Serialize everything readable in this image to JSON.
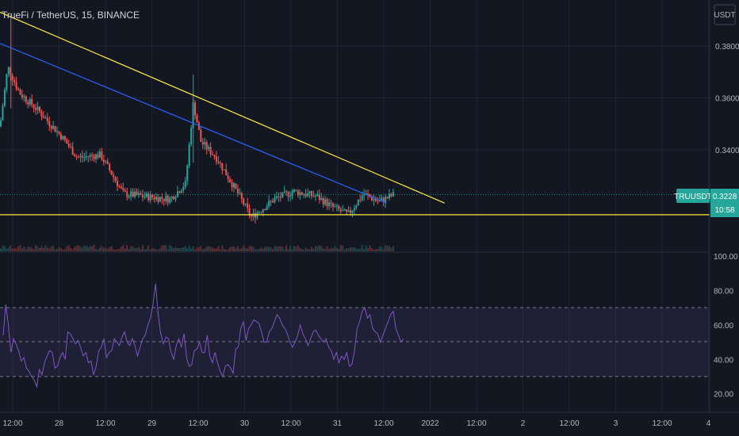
{
  "header": {
    "title": "TrueFi / TetherUS, 15, BINANCE"
  },
  "currency_badge": "USDT",
  "price_tag": {
    "symbol": "TRUUSDT",
    "price": "0.3228",
    "countdown": "10:58",
    "color": "#26a69a"
  },
  "colors": {
    "bg": "#131722",
    "up": "#26a69a",
    "down": "#ef5350",
    "trend_yellow": "#ffeb3b",
    "trend_blue": "#2962ff",
    "rsi": "#7e57c2"
  },
  "chart_data": [
    {
      "type": "candlestick",
      "x_tick_labels": [
        "12:00",
        "28",
        "12:00",
        "29",
        "12:00",
        "30",
        "12:00",
        "31",
        "12:00",
        "2022",
        "12:00",
        "2",
        "12:00",
        "3",
        "12:00",
        "4"
      ],
      "ylim": [
        0.3,
        0.396
      ],
      "y_ticks": [
        0.34,
        0.36,
        0.38
      ],
      "y_tick_labels": [
        "0.3400",
        "0.3600",
        "0.3800"
      ],
      "last_price": 0.3228,
      "approx_close_path": [
        {
          "x": "27 10:00",
          "y": 0.349
        },
        {
          "x": "27 12:00",
          "y": 0.372
        },
        {
          "x": "27 15:00",
          "y": 0.362
        },
        {
          "x": "27 20:00",
          "y": 0.355
        },
        {
          "x": "28 02:00",
          "y": 0.345
        },
        {
          "x": "28 06:00",
          "y": 0.337
        },
        {
          "x": "28 12:00",
          "y": 0.338
        },
        {
          "x": "28 18:00",
          "y": 0.323
        },
        {
          "x": "29 00:00",
          "y": 0.322
        },
        {
          "x": "29 06:00",
          "y": 0.321
        },
        {
          "x": "29 10:00",
          "y": 0.327
        },
        {
          "x": "29 12:00",
          "y": 0.358
        },
        {
          "x": "29 14:00",
          "y": 0.343
        },
        {
          "x": "29 18:00",
          "y": 0.337
        },
        {
          "x": "30 00:00",
          "y": 0.322
        },
        {
          "x": "30 03:00",
          "y": 0.314
        },
        {
          "x": "30 09:00",
          "y": 0.321
        },
        {
          "x": "30 14:00",
          "y": 0.324
        },
        {
          "x": "30 20:00",
          "y": 0.322
        },
        {
          "x": "31 00:00",
          "y": 0.318
        },
        {
          "x": "31 04:00",
          "y": 0.315
        },
        {
          "x": "31 08:00",
          "y": 0.323
        },
        {
          "x": "31 12:00",
          "y": 0.32
        },
        {
          "x": "31 16:00",
          "y": 0.3228
        }
      ],
      "trendlines": [
        {
          "color": "#ffeb3b",
          "from": {
            "x": "27 10:00",
            "y": 0.393
          },
          "to": {
            "x": "1 05:00",
            "y": 0.3195
          }
        },
        {
          "color": "#2962ff",
          "from": {
            "x": "27 10:00",
            "y": 0.381
          },
          "to": {
            "x": "31 14:00",
            "y": 0.3195
          }
        },
        {
          "color": "#ffeb3b",
          "horizontal": true,
          "y": 0.315
        }
      ]
    },
    {
      "type": "line",
      "name": "RSI",
      "ylim": [
        10,
        100
      ],
      "y_ticks": [
        20,
        40,
        60,
        80,
        100
      ],
      "y_tick_labels": [
        "20.00",
        "40.00",
        "60.00",
        "80.00",
        "100.00"
      ],
      "bands": {
        "upper": 70,
        "middle": 50,
        "lower": 30
      },
      "values": [
        54,
        72,
        60,
        44,
        52,
        49,
        45,
        39,
        41,
        35,
        33,
        30,
        28,
        24,
        34,
        31,
        38,
        42,
        45,
        44,
        35,
        36,
        41,
        44,
        40,
        56,
        55,
        52,
        49,
        51,
        47,
        42,
        44,
        38,
        39,
        31,
        36,
        45,
        47,
        52,
        41,
        44,
        45,
        52,
        50,
        48,
        53,
        56,
        50,
        48,
        52,
        48,
        42,
        47,
        52,
        54,
        60,
        64,
        72,
        84,
        66,
        55,
        49,
        53,
        52,
        44,
        40,
        48,
        52,
        47,
        55,
        41,
        36,
        37,
        45,
        46,
        50,
        44,
        44,
        54,
        42,
        38,
        44,
        38,
        33,
        30,
        36,
        37,
        35,
        32,
        46,
        47,
        58,
        62,
        51,
        58,
        60,
        63,
        62,
        61,
        56,
        50,
        50,
        56,
        58,
        62,
        66,
        64,
        60,
        58,
        55,
        50,
        47,
        50,
        54,
        60,
        55,
        52,
        48,
        52,
        56,
        57,
        54,
        52,
        50,
        52,
        47,
        45,
        40,
        44,
        38,
        42,
        40,
        44,
        36,
        37,
        45,
        58,
        62,
        68,
        70,
        64,
        66,
        58,
        56,
        55,
        50,
        54,
        58,
        62,
        66,
        68,
        58,
        54,
        50,
        52
      ]
    }
  ]
}
